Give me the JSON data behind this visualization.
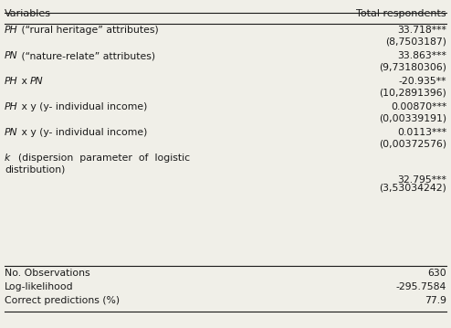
{
  "col_headers": [
    "Variables",
    "Total respondents"
  ],
  "rows": [
    {
      "label_parts": [
        [
          "PH",
          true
        ],
        [
          " (“rural heritage” attributes)",
          false
        ]
      ],
      "value": "33.718***",
      "std_err": "(8,7503187)"
    },
    {
      "label_parts": [
        [
          "PN",
          true
        ],
        [
          " (“nature-relate” attributes)",
          false
        ]
      ],
      "value": "33.863***",
      "std_err": "(9,73180306)"
    },
    {
      "label_parts": [
        [
          "PH",
          true
        ],
        [
          " x ",
          false
        ],
        [
          "PN",
          true
        ]
      ],
      "value": "-20.935**",
      "std_err": "(10,2891396)"
    },
    {
      "label_parts": [
        [
          "PH",
          true
        ],
        [
          " x y (y- individual income)",
          false
        ]
      ],
      "value": "0.00870***",
      "std_err": "(0,00339191)"
    },
    {
      "label_parts": [
        [
          "PN",
          true
        ],
        [
          " x y (y- individual income)",
          false
        ]
      ],
      "value": "0.0113***",
      "std_err": "(0,00372576)"
    },
    {
      "label_parts": [
        [
          "k",
          true
        ],
        [
          "  (dispersion  parameter  of  logistic",
          false
        ],
        [
          "\ndistribution)",
          false
        ]
      ],
      "value": "32.795***",
      "std_err": "(3,53034242)"
    }
  ],
  "footer_rows": [
    [
      "No. Observations",
      "630"
    ],
    [
      "Log-likelihood",
      "-295.7584"
    ],
    [
      "Correct predictions (%)",
      "77.9"
    ]
  ],
  "bg_color": "#f0efe8",
  "text_color": "#1a1a1a",
  "font_size": 7.8,
  "header_font_size": 8.0
}
